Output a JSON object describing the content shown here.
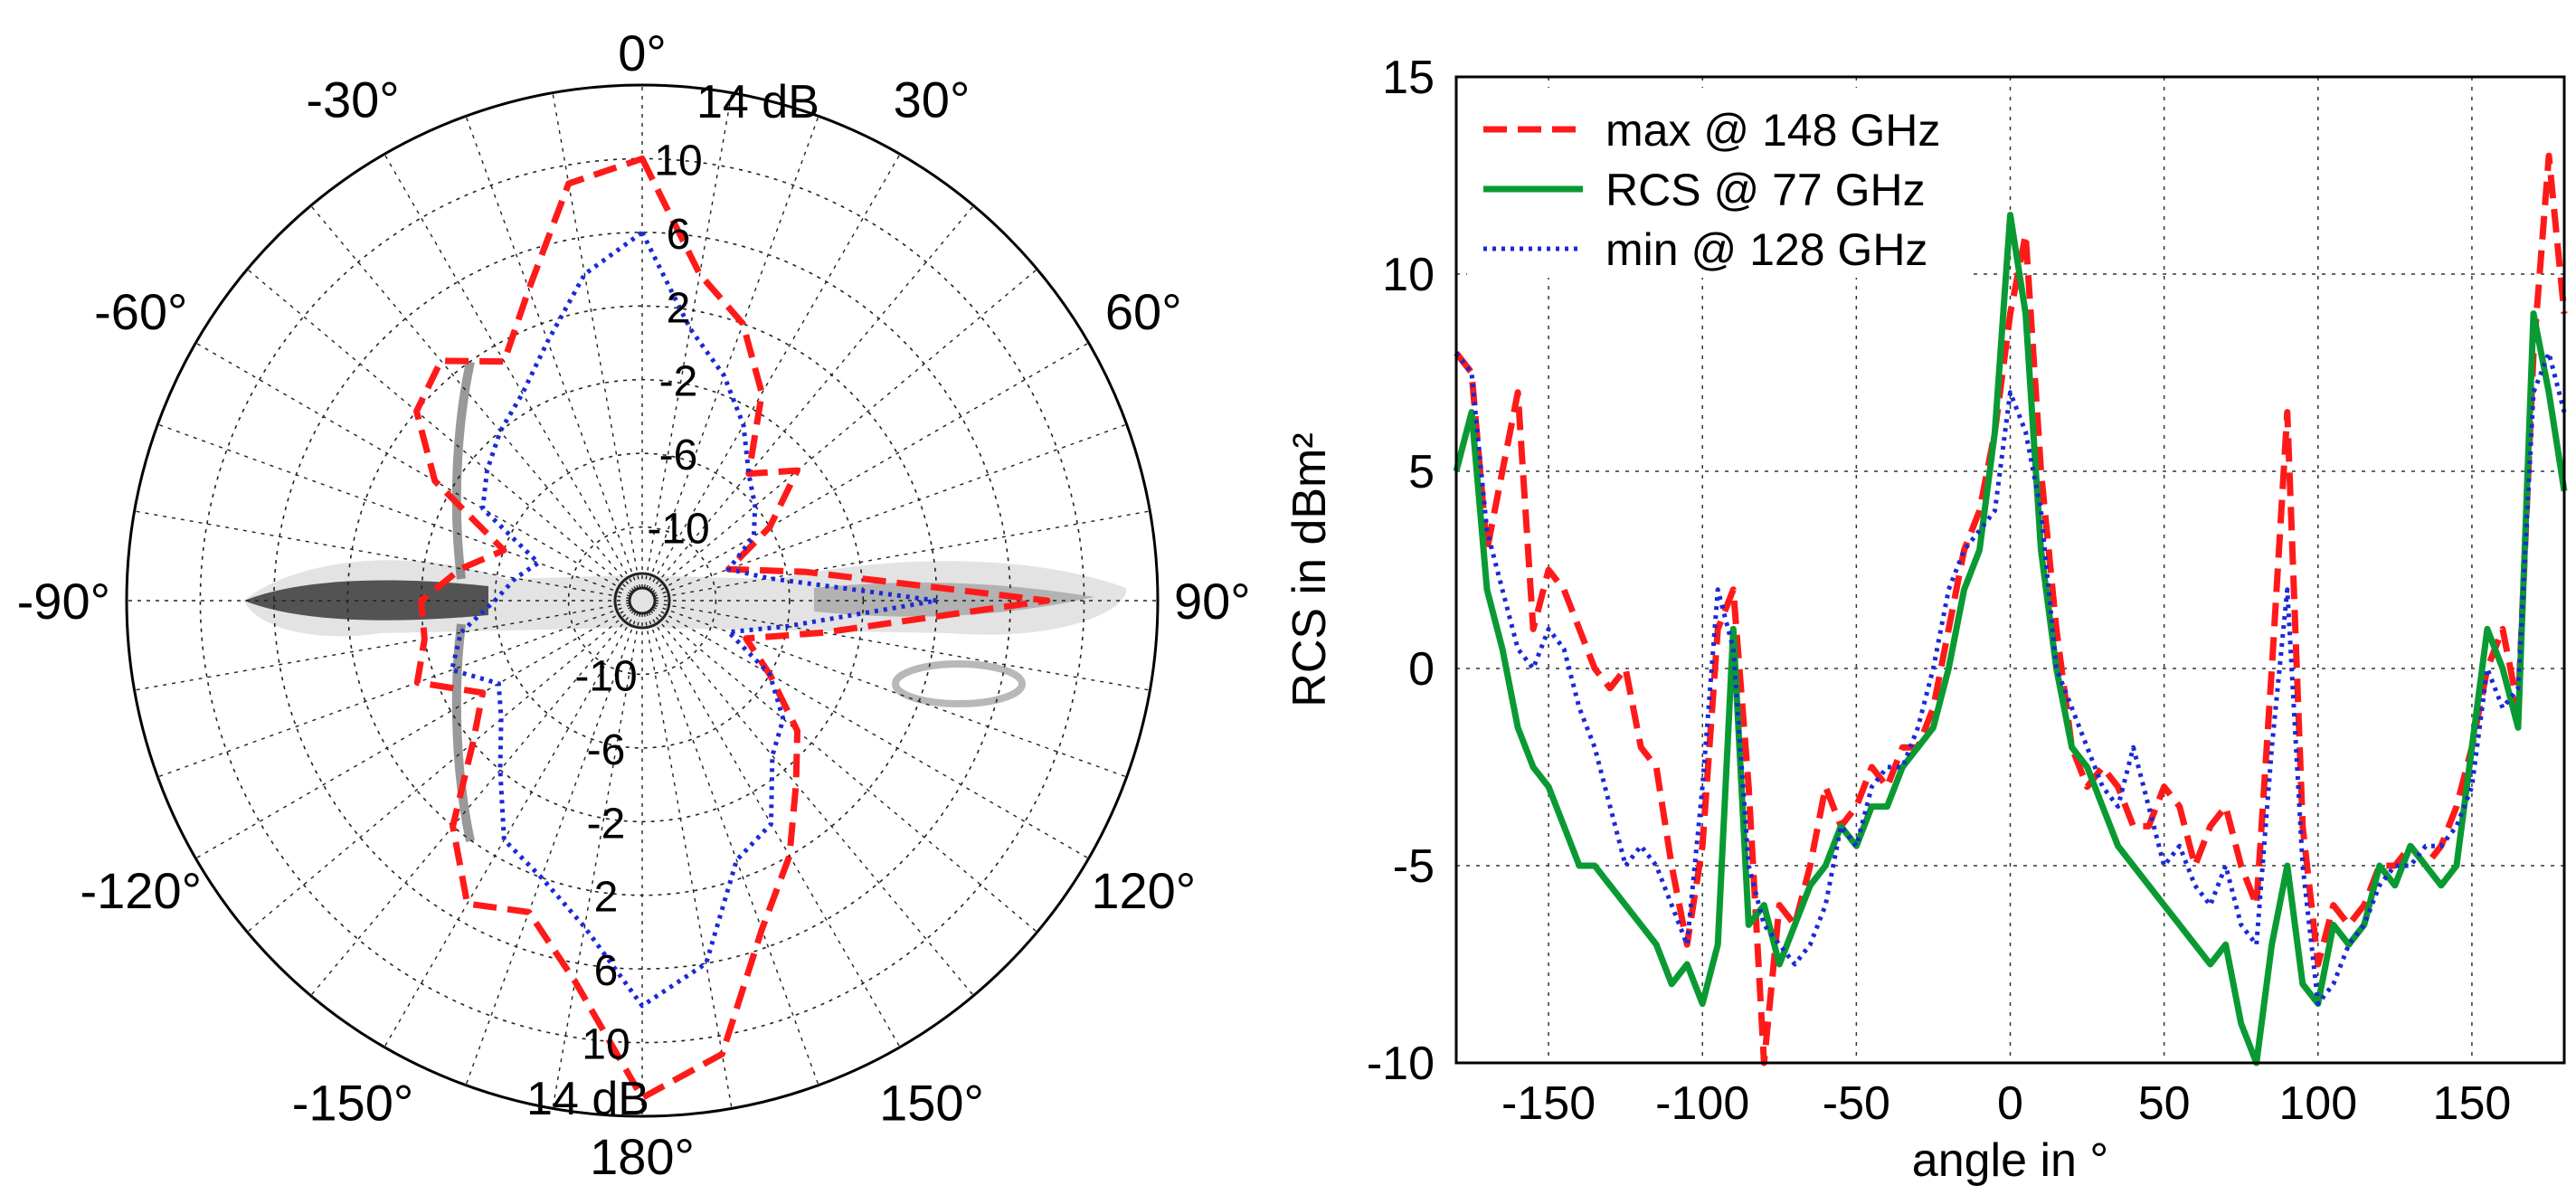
{
  "chart_data": [
    {
      "type": "polar",
      "title": "",
      "radial_unit": "dB",
      "radial_range": [
        -14,
        14
      ],
      "radial_ticks": [
        "-10",
        "-6",
        "-2",
        "2",
        "6",
        "10"
      ],
      "radial_max_label": "14 dB",
      "angle_ticks": [
        "0°",
        "30°",
        "60°",
        "90°",
        "120°",
        "150°",
        "180°",
        "-150°",
        "-120°",
        "-90°",
        "-60°",
        "-30°"
      ],
      "background_image": "motorcycle-top-view",
      "series": [
        {
          "name": "max @ 148 GHz",
          "color": "#ff1a1a",
          "style": "dashed",
          "angles": [
            0,
            10,
            20,
            30,
            40,
            50,
            60,
            70,
            80,
            90,
            100,
            110,
            120,
            130,
            140,
            150,
            160,
            170,
            180,
            190,
            200,
            210,
            220,
            230,
            240,
            250,
            260,
            270,
            280,
            290,
            300,
            310,
            320,
            330,
            340,
            350
          ],
          "values": [
            10,
            4,
            2,
            -1,
            -5,
            -3,
            -6,
            -9,
            -5,
            8,
            -4,
            -8,
            -6,
            -3,
            -1,
            2,
            5,
            11,
            13,
            7,
            4,
            5,
            2,
            -2,
            -4,
            -1,
            -2,
            -2,
            -4,
            -6,
            -1,
            2,
            3,
            1,
            4,
            9
          ]
        },
        {
          "name": "min @ 128 GHz",
          "color": "#1a2ad6",
          "style": "dotted",
          "angles": [
            0,
            10,
            20,
            30,
            40,
            50,
            60,
            70,
            80,
            90,
            100,
            110,
            120,
            130,
            140,
            150,
            160,
            170,
            180,
            190,
            200,
            210,
            220,
            230,
            240,
            250,
            260,
            270,
            280,
            290,
            300,
            310,
            320,
            330,
            340,
            350
          ],
          "values": [
            6,
            1,
            -1,
            -3,
            -5,
            -6,
            -7,
            -9,
            -7,
            2,
            -6,
            -9,
            -6,
            -4,
            -3,
            0,
            1,
            6,
            8,
            4,
            2,
            1,
            -2,
            -4,
            -5,
            -3,
            -4,
            -6,
            -7,
            -8,
            -4,
            -3,
            -2,
            -1,
            1,
            4
          ]
        }
      ]
    },
    {
      "type": "line",
      "title": "",
      "xlabel": "angle in °",
      "ylabel": "RCS in dBm²",
      "xlim": [
        -180,
        180
      ],
      "ylim": [
        -10,
        15
      ],
      "xticks": [
        -150,
        -100,
        -50,
        0,
        50,
        100,
        150
      ],
      "yticks": [
        -10,
        -5,
        0,
        5,
        10,
        15
      ],
      "grid": true,
      "legend_position": "top-left",
      "series": [
        {
          "name": "max @ 148 GHz",
          "color": "#ff1a1a",
          "style": "dashed",
          "x": [
            -180,
            -175,
            -170,
            -165,
            -160,
            -155,
            -150,
            -145,
            -140,
            -135,
            -130,
            -125,
            -120,
            -115,
            -110,
            -105,
            -100,
            -95,
            -90,
            -85,
            -80,
            -75,
            -70,
            -65,
            -60,
            -55,
            -50,
            -45,
            -40,
            -35,
            -30,
            -25,
            -20,
            -15,
            -10,
            -5,
            0,
            5,
            10,
            15,
            20,
            25,
            30,
            35,
            40,
            45,
            50,
            55,
            60,
            65,
            70,
            75,
            80,
            85,
            90,
            95,
            100,
            105,
            110,
            115,
            120,
            125,
            130,
            135,
            140,
            145,
            150,
            155,
            160,
            165,
            170,
            175,
            180
          ],
          "y": [
            8,
            7.5,
            3,
            5,
            7,
            1,
            2.5,
            2,
            1,
            0,
            -0.5,
            0,
            -2,
            -2.5,
            -5,
            -7,
            -4.5,
            1,
            2,
            -3,
            -10,
            -6,
            -6.5,
            -5,
            -3,
            -4,
            -3.5,
            -2.5,
            -3,
            -2,
            -2,
            -1,
            1,
            3,
            4,
            6,
            9,
            11,
            5,
            1,
            -2,
            -3,
            -2.5,
            -3,
            -4,
            -4,
            -3,
            -3.5,
            -5,
            -4,
            -3.5,
            -5,
            -6,
            0,
            6.5,
            -4,
            -7.5,
            -6,
            -6.5,
            -6,
            -5,
            -5,
            -4.5,
            -5,
            -4.5,
            -3.5,
            -2,
            0,
            1,
            -1,
            8,
            13,
            9
          ]
        },
        {
          "name": "RCS @ 77 GHz",
          "color": "#0a9a33",
          "style": "solid",
          "x": [
            -180,
            -175,
            -170,
            -165,
            -160,
            -155,
            -150,
            -145,
            -140,
            -135,
            -130,
            -125,
            -120,
            -115,
            -110,
            -105,
            -100,
            -95,
            -90,
            -85,
            -80,
            -75,
            -70,
            -65,
            -60,
            -55,
            -50,
            -45,
            -40,
            -35,
            -30,
            -25,
            -20,
            -15,
            -10,
            -5,
            0,
            5,
            10,
            15,
            20,
            25,
            30,
            35,
            40,
            45,
            50,
            55,
            60,
            65,
            70,
            75,
            80,
            85,
            90,
            95,
            100,
            105,
            110,
            115,
            120,
            125,
            130,
            135,
            140,
            145,
            150,
            155,
            160,
            165,
            170,
            175,
            180
          ],
          "y": [
            5,
            6.5,
            2,
            0.5,
            -1.5,
            -2.5,
            -3,
            -4,
            -5,
            -5,
            -5.5,
            -6,
            -6.5,
            -7,
            -8,
            -7.5,
            -8.5,
            -7,
            1,
            -6.5,
            -6,
            -7.5,
            -6.5,
            -5.5,
            -5,
            -4,
            -4.5,
            -3.5,
            -3.5,
            -2.5,
            -2,
            -1.5,
            0,
            2,
            3,
            6,
            11.5,
            9,
            3,
            0,
            -2,
            -2.5,
            -3.5,
            -4.5,
            -5,
            -5.5,
            -6,
            -6.5,
            -7,
            -7.5,
            -7,
            -9,
            -10,
            -7,
            -5,
            -8,
            -8.5,
            -6.5,
            -7,
            -6.5,
            -5,
            -5.5,
            -4.5,
            -5,
            -5.5,
            -5,
            -2,
            1,
            0,
            -1.5,
            9,
            7,
            4.5
          ]
        },
        {
          "name": "min @ 128 GHz",
          "color": "#1a2ad6",
          "style": "dotted",
          "x": [
            -180,
            -175,
            -170,
            -165,
            -160,
            -155,
            -150,
            -145,
            -140,
            -135,
            -130,
            -125,
            -120,
            -115,
            -110,
            -105,
            -100,
            -95,
            -90,
            -85,
            -80,
            -75,
            -70,
            -65,
            -60,
            -55,
            -50,
            -45,
            -40,
            -35,
            -30,
            -25,
            -20,
            -15,
            -10,
            -5,
            0,
            5,
            10,
            15,
            20,
            25,
            30,
            35,
            40,
            45,
            50,
            55,
            60,
            65,
            70,
            75,
            80,
            85,
            90,
            95,
            100,
            105,
            110,
            115,
            120,
            125,
            130,
            135,
            140,
            145,
            150,
            155,
            160,
            165,
            170,
            175,
            180
          ],
          "y": [
            8,
            7.5,
            3.5,
            2,
            0.5,
            0,
            1,
            0.5,
            -1,
            -2,
            -3.5,
            -5,
            -4.5,
            -5,
            -6,
            -7,
            -3,
            2,
            0.5,
            -5,
            -6.5,
            -7,
            -7.5,
            -7,
            -6,
            -4,
            -4.5,
            -3,
            -2.5,
            -2.5,
            -1.5,
            0,
            2,
            3,
            3.5,
            4,
            7,
            6,
            4,
            0,
            -1,
            -2,
            -3,
            -3.5,
            -2,
            -3.5,
            -5,
            -4.5,
            -5.5,
            -6,
            -5,
            -6.5,
            -7,
            -2,
            2,
            -5,
            -8.5,
            -8,
            -7,
            -6.5,
            -5.5,
            -5,
            -5,
            -4.5,
            -4.5,
            -4,
            -3,
            0,
            -1,
            -0.5,
            7,
            8,
            6.5
          ]
        }
      ]
    }
  ]
}
